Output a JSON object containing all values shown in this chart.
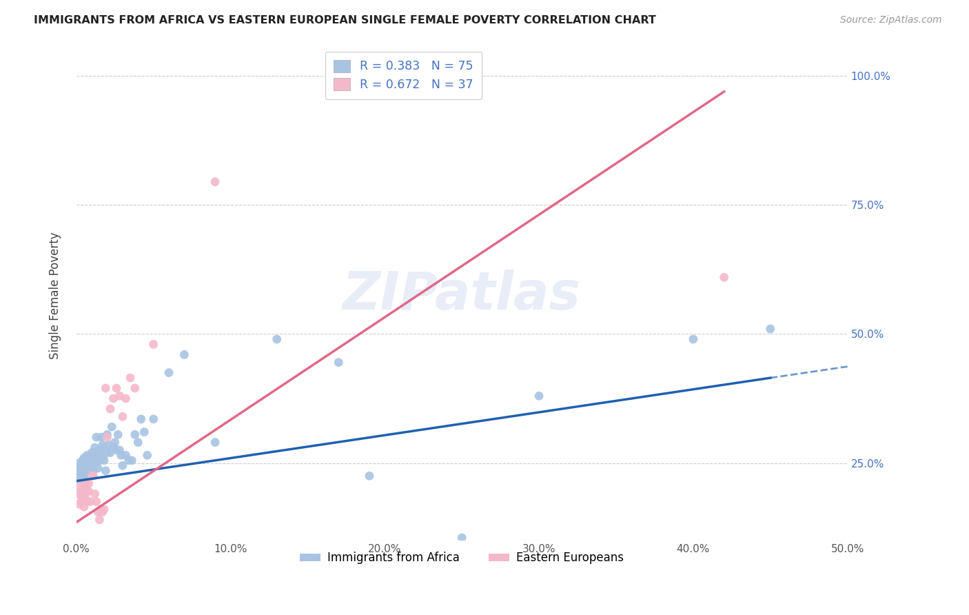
{
  "title": "IMMIGRANTS FROM AFRICA VS EASTERN EUROPEAN SINGLE FEMALE POVERTY CORRELATION CHART",
  "source": "Source: ZipAtlas.com",
  "ylabel": "Single Female Poverty",
  "xlim": [
    0.0,
    0.5
  ],
  "ylim": [
    0.1,
    1.05
  ],
  "ytick_labels": [
    "",
    "25.0%",
    "50.0%",
    "75.0%",
    "100.0%"
  ],
  "ytick_vals": [
    0.1,
    0.25,
    0.5,
    0.75,
    1.0
  ],
  "xtick_labels": [
    "0.0%",
    "10.0%",
    "20.0%",
    "30.0%",
    "40.0%",
    "50.0%"
  ],
  "xtick_vals": [
    0.0,
    0.1,
    0.2,
    0.3,
    0.4,
    0.5
  ],
  "background_color": "#ffffff",
  "grid_color": "#cccccc",
  "africa_color": "#a8c4e2",
  "eastern_color": "#f4b8cb",
  "africa_line_color": "#2060b0",
  "eastern_line_color": "#e06888",
  "africa_R": "0.383",
  "africa_N": "75",
  "eastern_R": "0.672",
  "eastern_N": "37",
  "legend_label_africa": "Immigrants from Africa",
  "legend_label_eastern": "Eastern Europeans",
  "R_color": "#4472c4",
  "watermark_text": "ZIPatlas",
  "africa_line_x0": 0.0,
  "africa_line_y0": 0.215,
  "africa_line_x1": 0.45,
  "africa_line_y1": 0.415,
  "africa_line_xdash": 0.45,
  "africa_line_ydash": 0.415,
  "africa_line_xend": 0.5,
  "africa_line_yend": 0.437,
  "eastern_line_x0": 0.0,
  "eastern_line_y0": 0.135,
  "eastern_line_x1": 0.42,
  "eastern_line_y1": 0.97,
  "africa_scatter_x": [
    0.001,
    0.001,
    0.002,
    0.002,
    0.003,
    0.003,
    0.003,
    0.004,
    0.004,
    0.005,
    0.005,
    0.005,
    0.006,
    0.006,
    0.006,
    0.007,
    0.007,
    0.007,
    0.008,
    0.008,
    0.008,
    0.009,
    0.009,
    0.009,
    0.01,
    0.01,
    0.01,
    0.011,
    0.011,
    0.012,
    0.012,
    0.013,
    0.013,
    0.014,
    0.014,
    0.015,
    0.015,
    0.016,
    0.016,
    0.017,
    0.017,
    0.018,
    0.018,
    0.019,
    0.02,
    0.02,
    0.021,
    0.022,
    0.023,
    0.024,
    0.025,
    0.026,
    0.027,
    0.028,
    0.029,
    0.03,
    0.032,
    0.034,
    0.036,
    0.038,
    0.04,
    0.042,
    0.044,
    0.046,
    0.05,
    0.06,
    0.07,
    0.09,
    0.13,
    0.17,
    0.19,
    0.25,
    0.3,
    0.4,
    0.45
  ],
  "africa_scatter_y": [
    0.22,
    0.24,
    0.235,
    0.25,
    0.22,
    0.23,
    0.245,
    0.225,
    0.255,
    0.24,
    0.22,
    0.26,
    0.23,
    0.245,
    0.225,
    0.25,
    0.235,
    0.265,
    0.24,
    0.255,
    0.225,
    0.265,
    0.245,
    0.235,
    0.27,
    0.255,
    0.24,
    0.25,
    0.235,
    0.28,
    0.265,
    0.3,
    0.27,
    0.255,
    0.24,
    0.275,
    0.255,
    0.3,
    0.27,
    0.285,
    0.26,
    0.28,
    0.255,
    0.235,
    0.305,
    0.27,
    0.285,
    0.27,
    0.32,
    0.28,
    0.29,
    0.275,
    0.305,
    0.275,
    0.265,
    0.245,
    0.265,
    0.255,
    0.255,
    0.305,
    0.29,
    0.335,
    0.31,
    0.265,
    0.335,
    0.425,
    0.46,
    0.29,
    0.49,
    0.445,
    0.225,
    0.105,
    0.38,
    0.49,
    0.51
  ],
  "eastern_scatter_x": [
    0.001,
    0.002,
    0.002,
    0.003,
    0.003,
    0.004,
    0.005,
    0.005,
    0.006,
    0.006,
    0.007,
    0.007,
    0.008,
    0.008,
    0.009,
    0.01,
    0.011,
    0.012,
    0.013,
    0.014,
    0.015,
    0.016,
    0.017,
    0.018,
    0.019,
    0.02,
    0.022,
    0.024,
    0.026,
    0.028,
    0.03,
    0.032,
    0.035,
    0.038,
    0.05,
    0.09,
    0.42
  ],
  "eastern_scatter_y": [
    0.19,
    0.17,
    0.205,
    0.175,
    0.195,
    0.185,
    0.165,
    0.2,
    0.21,
    0.18,
    0.195,
    0.175,
    0.21,
    0.195,
    0.175,
    0.225,
    0.225,
    0.19,
    0.175,
    0.155,
    0.14,
    0.16,
    0.155,
    0.16,
    0.395,
    0.3,
    0.355,
    0.375,
    0.395,
    0.38,
    0.34,
    0.375,
    0.415,
    0.395,
    0.48,
    0.795,
    0.61
  ]
}
